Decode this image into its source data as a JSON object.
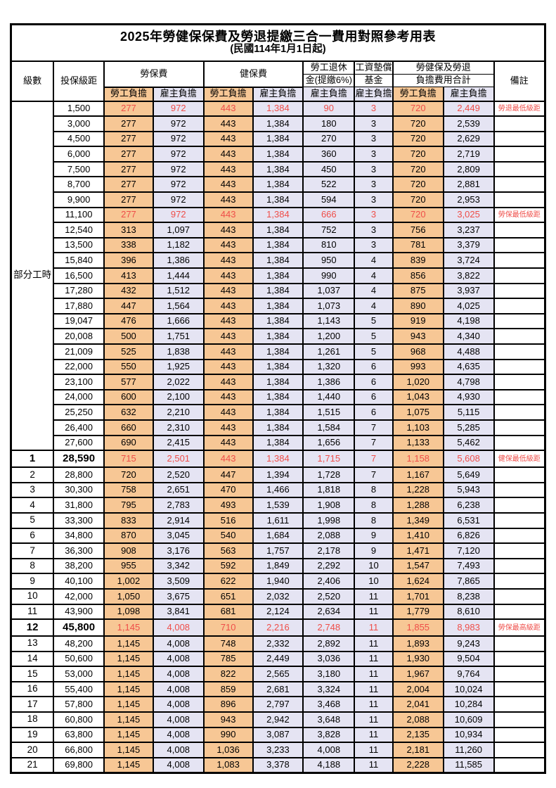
{
  "title": "2025年勞健保保費及勞退提繳三合一費用對照參考用表",
  "subtitle": "(民國114年1月1日起)",
  "colors": {
    "employee_fill": "#F7C795",
    "employer_fill": "#E5E4F3",
    "highlight_text": "#EF4E49",
    "border": "#000000"
  },
  "header": {
    "level": "級數",
    "bracket": "投保級距",
    "labor_insurance": "勞保費",
    "health_insurance": "健保費",
    "pension_line1": "勞工退休",
    "pension_line2": "金(提繳6%)",
    "wage_fund_line1": "工資墊償",
    "wage_fund_line2": "基金",
    "total_line1": "勞健保及勞退",
    "total_line2": "負擔費用合計",
    "remark": "備註",
    "employee": "勞工負擔",
    "employer": "雇主負擔"
  },
  "part_time_label": "部分工時",
  "rows": [
    {
      "bracket": "1,500",
      "cells": [
        "277",
        "972",
        "443",
        "1,384",
        "90",
        "3",
        "720",
        "2,449"
      ],
      "remark": "勞退最低級距",
      "hl": true
    },
    {
      "bracket": "3,000",
      "cells": [
        "277",
        "972",
        "443",
        "1,384",
        "180",
        "3",
        "720",
        "2,539"
      ],
      "remark": ""
    },
    {
      "bracket": "4,500",
      "cells": [
        "277",
        "972",
        "443",
        "1,384",
        "270",
        "3",
        "720",
        "2,629"
      ],
      "remark": ""
    },
    {
      "bracket": "6,000",
      "cells": [
        "277",
        "972",
        "443",
        "1,384",
        "360",
        "3",
        "720",
        "2,719"
      ],
      "remark": ""
    },
    {
      "bracket": "7,500",
      "cells": [
        "277",
        "972",
        "443",
        "1,384",
        "450",
        "3",
        "720",
        "2,809"
      ],
      "remark": ""
    },
    {
      "bracket": "8,700",
      "cells": [
        "277",
        "972",
        "443",
        "1,384",
        "522",
        "3",
        "720",
        "2,881"
      ],
      "remark": ""
    },
    {
      "bracket": "9,900",
      "cells": [
        "277",
        "972",
        "443",
        "1,384",
        "594",
        "3",
        "720",
        "2,953"
      ],
      "remark": ""
    },
    {
      "bracket": "11,100",
      "cells": [
        "277",
        "972",
        "443",
        "1,384",
        "666",
        "3",
        "720",
        "3,025"
      ],
      "remark": "勞保最低級距",
      "hl": true
    },
    {
      "bracket": "12,540",
      "cells": [
        "313",
        "1,097",
        "443",
        "1,384",
        "752",
        "3",
        "756",
        "3,237"
      ],
      "remark": ""
    },
    {
      "bracket": "13,500",
      "cells": [
        "338",
        "1,182",
        "443",
        "1,384",
        "810",
        "3",
        "781",
        "3,379"
      ],
      "remark": ""
    },
    {
      "bracket": "15,840",
      "cells": [
        "396",
        "1,386",
        "443",
        "1,384",
        "950",
        "4",
        "839",
        "3,724"
      ],
      "remark": ""
    },
    {
      "bracket": "16,500",
      "cells": [
        "413",
        "1,444",
        "443",
        "1,384",
        "990",
        "4",
        "856",
        "3,822"
      ],
      "remark": ""
    },
    {
      "bracket": "17,280",
      "cells": [
        "432",
        "1,512",
        "443",
        "1,384",
        "1,037",
        "4",
        "875",
        "3,937"
      ],
      "remark": ""
    },
    {
      "bracket": "17,880",
      "cells": [
        "447",
        "1,564",
        "443",
        "1,384",
        "1,073",
        "4",
        "890",
        "4,025"
      ],
      "remark": ""
    },
    {
      "bracket": "19,047",
      "cells": [
        "476",
        "1,666",
        "443",
        "1,384",
        "1,143",
        "5",
        "919",
        "4,198"
      ],
      "remark": ""
    },
    {
      "bracket": "20,008",
      "cells": [
        "500",
        "1,751",
        "443",
        "1,384",
        "1,200",
        "5",
        "943",
        "4,340"
      ],
      "remark": ""
    },
    {
      "bracket": "21,009",
      "cells": [
        "525",
        "1,838",
        "443",
        "1,384",
        "1,261",
        "5",
        "968",
        "4,488"
      ],
      "remark": ""
    },
    {
      "bracket": "22,000",
      "cells": [
        "550",
        "1,925",
        "443",
        "1,384",
        "1,320",
        "6",
        "993",
        "4,635"
      ],
      "remark": ""
    },
    {
      "bracket": "23,100",
      "cells": [
        "577",
        "2,022",
        "443",
        "1,384",
        "1,386",
        "6",
        "1,020",
        "4,798"
      ],
      "remark": ""
    },
    {
      "bracket": "24,000",
      "cells": [
        "600",
        "2,100",
        "443",
        "1,384",
        "1,440",
        "6",
        "1,043",
        "4,930"
      ],
      "remark": ""
    },
    {
      "bracket": "25,250",
      "cells": [
        "632",
        "2,210",
        "443",
        "1,384",
        "1,515",
        "6",
        "1,075",
        "5,115"
      ],
      "remark": ""
    },
    {
      "bracket": "26,400",
      "cells": [
        "660",
        "2,310",
        "443",
        "1,384",
        "1,584",
        "7",
        "1,103",
        "5,285"
      ],
      "remark": ""
    },
    {
      "bracket": "27,600",
      "cells": [
        "690",
        "2,415",
        "443",
        "1,384",
        "1,656",
        "7",
        "1,133",
        "5,462"
      ],
      "remark": ""
    },
    {
      "lvl": "1",
      "bracket": "28,590",
      "cells": [
        "715",
        "2,501",
        "443",
        "1,384",
        "1,715",
        "7",
        "1,158",
        "5,608"
      ],
      "remark": "健保最低級距",
      "hl": true,
      "bold": true
    },
    {
      "lvl": "2",
      "bracket": "28,800",
      "cells": [
        "720",
        "2,520",
        "447",
        "1,394",
        "1,728",
        "7",
        "1,167",
        "5,649"
      ],
      "remark": ""
    },
    {
      "lvl": "3",
      "bracket": "30,300",
      "cells": [
        "758",
        "2,651",
        "470",
        "1,466",
        "1,818",
        "8",
        "1,228",
        "5,943"
      ],
      "remark": ""
    },
    {
      "lvl": "4",
      "bracket": "31,800",
      "cells": [
        "795",
        "2,783",
        "493",
        "1,539",
        "1,908",
        "8",
        "1,288",
        "6,238"
      ],
      "remark": ""
    },
    {
      "lvl": "5",
      "bracket": "33,300",
      "cells": [
        "833",
        "2,914",
        "516",
        "1,611",
        "1,998",
        "8",
        "1,349",
        "6,531"
      ],
      "remark": ""
    },
    {
      "lvl": "6",
      "bracket": "34,800",
      "cells": [
        "870",
        "3,045",
        "540",
        "1,684",
        "2,088",
        "9",
        "1,410",
        "6,826"
      ],
      "remark": ""
    },
    {
      "lvl": "7",
      "bracket": "36,300",
      "cells": [
        "908",
        "3,176",
        "563",
        "1,757",
        "2,178",
        "9",
        "1,471",
        "7,120"
      ],
      "remark": ""
    },
    {
      "lvl": "8",
      "bracket": "38,200",
      "cells": [
        "955",
        "3,342",
        "592",
        "1,849",
        "2,292",
        "10",
        "1,547",
        "7,493"
      ],
      "remark": ""
    },
    {
      "lvl": "9",
      "bracket": "40,100",
      "cells": [
        "1,002",
        "3,509",
        "622",
        "1,940",
        "2,406",
        "10",
        "1,624",
        "7,865"
      ],
      "remark": ""
    },
    {
      "lvl": "10",
      "bracket": "42,000",
      "cells": [
        "1,050",
        "3,675",
        "651",
        "2,032",
        "2,520",
        "11",
        "1,701",
        "8,238"
      ],
      "remark": ""
    },
    {
      "lvl": "11",
      "bracket": "43,900",
      "cells": [
        "1,098",
        "3,841",
        "681",
        "2,124",
        "2,634",
        "11",
        "1,779",
        "8,610"
      ],
      "remark": ""
    },
    {
      "lvl": "12",
      "bracket": "45,800",
      "cells": [
        "1,145",
        "4,008",
        "710",
        "2,216",
        "2,748",
        "11",
        "1,855",
        "8,983"
      ],
      "remark": "勞保最高級距",
      "hl": true,
      "bold": true
    },
    {
      "lvl": "13",
      "bracket": "48,200",
      "cells": [
        "1,145",
        "4,008",
        "748",
        "2,332",
        "2,892",
        "11",
        "1,893",
        "9,243"
      ],
      "remark": ""
    },
    {
      "lvl": "14",
      "bracket": "50,600",
      "cells": [
        "1,145",
        "4,008",
        "785",
        "2,449",
        "3,036",
        "11",
        "1,930",
        "9,504"
      ],
      "remark": ""
    },
    {
      "lvl": "15",
      "bracket": "53,000",
      "cells": [
        "1,145",
        "4,008",
        "822",
        "2,565",
        "3,180",
        "11",
        "1,967",
        "9,764"
      ],
      "remark": ""
    },
    {
      "lvl": "16",
      "bracket": "55,400",
      "cells": [
        "1,145",
        "4,008",
        "859",
        "2,681",
        "3,324",
        "11",
        "2,004",
        "10,024"
      ],
      "remark": ""
    },
    {
      "lvl": "17",
      "bracket": "57,800",
      "cells": [
        "1,145",
        "4,008",
        "896",
        "2,797",
        "3,468",
        "11",
        "2,041",
        "10,284"
      ],
      "remark": ""
    },
    {
      "lvl": "18",
      "bracket": "60,800",
      "cells": [
        "1,145",
        "4,008",
        "943",
        "2,942",
        "3,648",
        "11",
        "2,088",
        "10,609"
      ],
      "remark": ""
    },
    {
      "lvl": "19",
      "bracket": "63,800",
      "cells": [
        "1,145",
        "4,008",
        "990",
        "3,087",
        "3,828",
        "11",
        "2,135",
        "10,934"
      ],
      "remark": ""
    },
    {
      "lvl": "20",
      "bracket": "66,800",
      "cells": [
        "1,145",
        "4,008",
        "1,036",
        "3,233",
        "4,008",
        "11",
        "2,181",
        "11,260"
      ],
      "remark": ""
    },
    {
      "lvl": "21",
      "bracket": "69,800",
      "cells": [
        "1,145",
        "4,008",
        "1,083",
        "3,378",
        "4,188",
        "11",
        "2,228",
        "11,585"
      ],
      "remark": ""
    }
  ]
}
